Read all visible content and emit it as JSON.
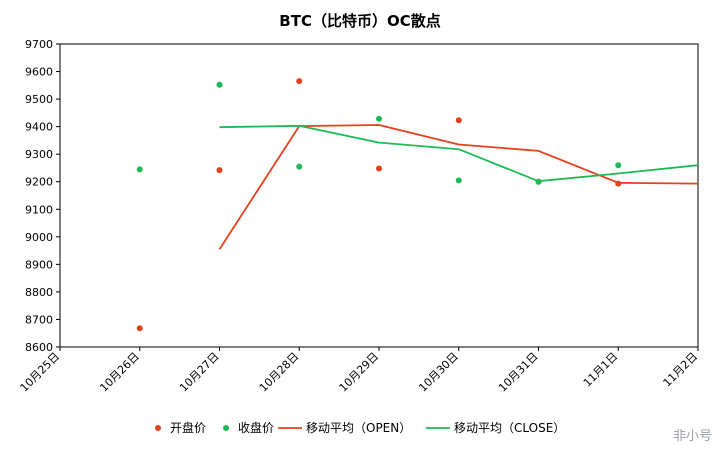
{
  "chart_data": {
    "type": "scatter",
    "title": "BTC（比特币）OC散点",
    "categories": [
      "10月25日",
      "10月26日",
      "10月27日",
      "10月28日",
      "10月29日",
      "10月30日",
      "10月31日",
      "11月1日",
      "11月2日"
    ],
    "ylim": [
      8600,
      9700
    ],
    "ytick_step": 100,
    "yticks": [
      "8600",
      "8700",
      "8800",
      "8900",
      "9000",
      "9100",
      "9200",
      "9300",
      "9400",
      "9500",
      "9600",
      "9700"
    ],
    "grid": false,
    "legend_position": "bottom",
    "series": [
      {
        "name": "开盘价",
        "kind": "scatter",
        "color": "#e8401c",
        "x": [
          "10月26日",
          "10月27日",
          "10月28日",
          "10月29日",
          "10月30日",
          "10月31日",
          "11月1日"
        ],
        "values": [
          8668,
          9242,
          9565,
          9248,
          9423,
          9200,
          9193
        ]
      },
      {
        "name": "收盘价",
        "kind": "scatter",
        "color": "#1db954",
        "x": [
          "10月26日",
          "10月27日",
          "10月28日",
          "10月29日",
          "10月30日",
          "10月31日",
          "11月1日"
        ],
        "values": [
          9245,
          9552,
          9255,
          9428,
          9205,
          9200,
          9260
        ]
      },
      {
        "name": "移动平均（OPEN）",
        "kind": "line",
        "color": "#e8401c",
        "x": [
          "10月27日",
          "10月28日",
          "10月29日",
          "10月30日",
          "10月31日",
          "11月1日",
          "11月2日"
        ],
        "values": [
          8955,
          9402,
          9406,
          9335,
          9312,
          9196,
          9193
        ]
      },
      {
        "name": "移动平均（CLOSE）",
        "kind": "line",
        "color": "#1db954",
        "x": [
          "10月27日",
          "10月28日",
          "10月29日",
          "10月30日",
          "10月31日",
          "11月1日",
          "11月2日"
        ],
        "values": [
          9398,
          9403,
          9342,
          9318,
          9202,
          9230,
          9260
        ]
      }
    ]
  },
  "watermark": "非小号"
}
